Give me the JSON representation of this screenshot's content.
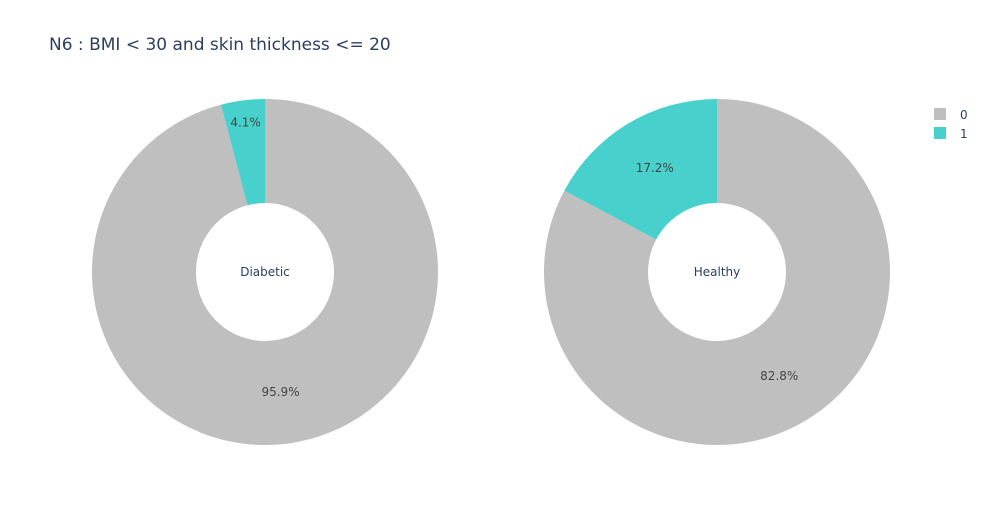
{
  "chart_data": {
    "type": "pie",
    "title": "N6 : BMI < 30 and skin thickness <= 20",
    "hole": true,
    "legend": {
      "placement": "top-right",
      "entries": [
        {
          "label": "0",
          "color": "#bfbfbf"
        },
        {
          "label": "1",
          "color": "#48d1cc"
        }
      ]
    },
    "pies": [
      {
        "name": "Diabetic",
        "slices": [
          {
            "label": "0",
            "value": 95.9,
            "text": "95.9%",
            "color": "#bfbfbf"
          },
          {
            "label": "1",
            "value": 4.1,
            "text": "4.1%",
            "color": "#48d1cc"
          }
        ]
      },
      {
        "name": "Healthy",
        "slices": [
          {
            "label": "0",
            "value": 82.8,
            "text": "82.8%",
            "color": "#bfbfbf"
          },
          {
            "label": "1",
            "value": 17.2,
            "text": "17.2%",
            "color": "#48d1cc"
          }
        ]
      }
    ]
  }
}
